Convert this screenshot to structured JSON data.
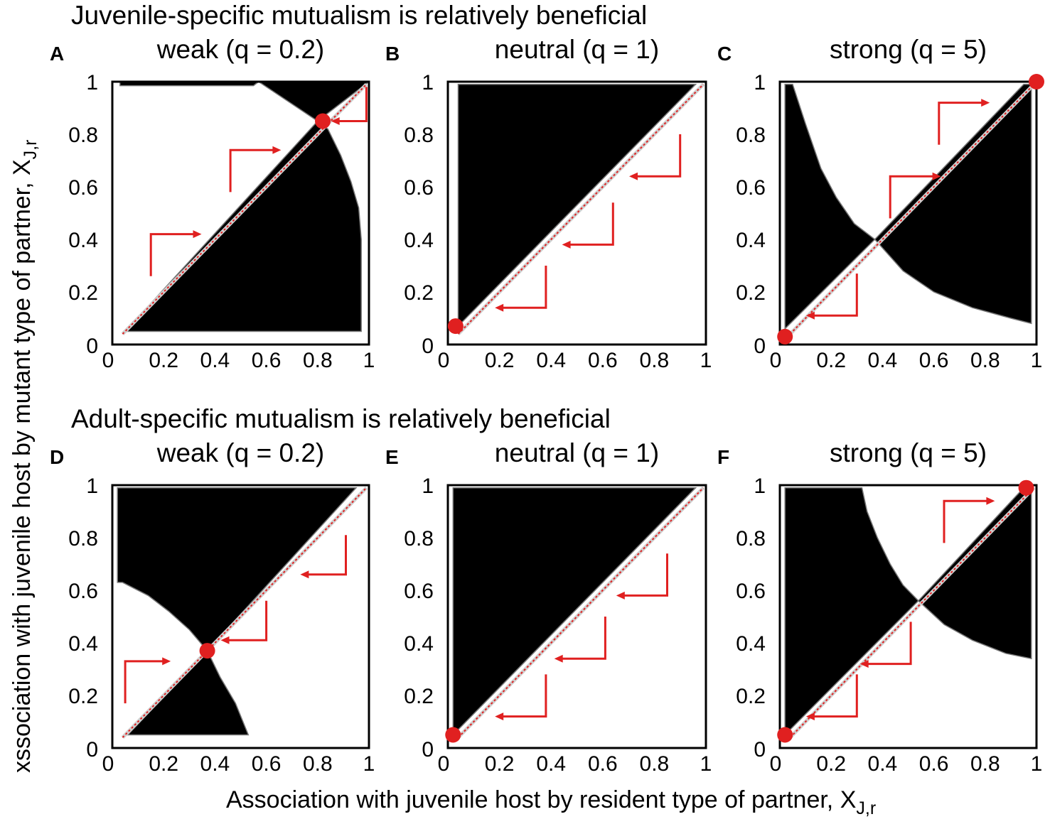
{
  "figure": {
    "row_titles": [
      "Juvenile-specific mutualism is relatively beneficial",
      "Adult-specific mutualism is relatively beneficial"
    ],
    "xlabel": "Association with juvenile host by resident type of partner, X",
    "xlabel_sub": "J,r",
    "ylabel": "xssociation with juvenile host by mutant type of partner, X",
    "ylabel_sub": "J,r",
    "colors": {
      "region": "#000000",
      "diagonal": "#e02020",
      "arrow": "#e02020",
      "point": "#e02020",
      "frame": "#000000"
    }
  },
  "chart_data": [
    {
      "type": "heatmap",
      "letter": "A",
      "title": "weak (q = 0.2)",
      "xlim": [
        0,
        1
      ],
      "ylim": [
        0,
        1
      ],
      "xticks": [
        "0",
        "0.2",
        "0.4",
        "0.6",
        "0.8",
        "1"
      ],
      "yticks": [
        "0",
        "0.2",
        "0.4",
        "0.6",
        "0.8",
        "1"
      ],
      "regions": [
        [
          [
            0.05,
            0.05
          ],
          [
            0.8,
            0.85
          ],
          [
            0.84,
            0.82
          ],
          [
            0.89,
            0.72
          ],
          [
            0.93,
            0.62
          ],
          [
            0.96,
            0.52
          ],
          [
            0.97,
            0.4
          ],
          [
            0.97,
            0.05
          ]
        ],
        [
          [
            0.8,
            0.85
          ],
          [
            0.57,
            1
          ],
          [
            1,
            1
          ]
        ],
        [
          [
            0.03,
            1
          ],
          [
            0.03,
            0.985
          ],
          [
            0.55,
            0.985
          ],
          [
            0.57,
            1
          ]
        ]
      ],
      "singular_points": [
        [
          0.82,
          0.85
        ]
      ],
      "arrows": [
        {
          "dir": "right",
          "from": [
            0.15,
            0.26
          ],
          "corner": [
            0.15,
            0.42
          ],
          "to": [
            0.32,
            0.42
          ]
        },
        {
          "dir": "right",
          "from": [
            0.46,
            0.58
          ],
          "corner": [
            0.46,
            0.74
          ],
          "to": [
            0.63,
            0.74
          ]
        },
        {
          "dir": "left",
          "from": [
            0.99,
            0.98
          ],
          "corner": [
            0.99,
            0.85
          ],
          "to": [
            0.88,
            0.85
          ]
        }
      ]
    },
    {
      "type": "heatmap",
      "letter": "B",
      "title": "neutral (q = 1)",
      "xlim": [
        0,
        1
      ],
      "ylim": [
        0,
        1
      ],
      "xticks": [
        "0",
        "0.2",
        "0.4",
        "0.6",
        "0.8",
        "1"
      ],
      "yticks": [
        "0",
        "0.2",
        "0.4",
        "0.6",
        "0.8",
        "1"
      ],
      "regions": [
        [
          [
            0.04,
            0.07
          ],
          [
            0.04,
            0.99
          ],
          [
            0.96,
            0.99
          ]
        ]
      ],
      "singular_points": [
        [
          0.03,
          0.07
        ]
      ],
      "arrows": [
        {
          "dir": "left",
          "from": [
            0.38,
            0.3
          ],
          "corner": [
            0.38,
            0.14
          ],
          "to": [
            0.21,
            0.14
          ]
        },
        {
          "dir": "left",
          "from": [
            0.64,
            0.54
          ],
          "corner": [
            0.64,
            0.38
          ],
          "to": [
            0.47,
            0.38
          ]
        },
        {
          "dir": "left",
          "from": [
            0.9,
            0.8
          ],
          "corner": [
            0.9,
            0.64
          ],
          "to": [
            0.73,
            0.64
          ]
        }
      ]
    },
    {
      "type": "heatmap",
      "letter": "C",
      "title": "strong (q = 5)",
      "xlim": [
        0,
        1
      ],
      "ylim": [
        0,
        1
      ],
      "xticks": [
        "0",
        "0.2",
        "0.4",
        "0.6",
        "0.8",
        "1"
      ],
      "yticks": [
        "0",
        "0.2",
        "0.4",
        "0.6",
        "0.8",
        "1"
      ],
      "regions": [
        [
          [
            0.02,
            0.06
          ],
          [
            0.02,
            0.99
          ],
          [
            0.05,
            0.99
          ],
          [
            0.1,
            0.84
          ],
          [
            0.16,
            0.67
          ],
          [
            0.22,
            0.56
          ],
          [
            0.29,
            0.46
          ],
          [
            0.37,
            0.4
          ]
        ],
        [
          [
            0.37,
            0.4
          ],
          [
            0.95,
            0.99
          ],
          [
            0.98,
            0.99
          ],
          [
            0.98,
            0.08
          ],
          [
            0.9,
            0.1
          ],
          [
            0.75,
            0.14
          ],
          [
            0.6,
            0.2
          ],
          [
            0.48,
            0.28
          ]
        ]
      ],
      "singular_points": [
        [
          0.02,
          0.03
        ],
        [
          1,
          1
        ]
      ],
      "arrows": [
        {
          "dir": "left",
          "from": [
            0.3,
            0.27
          ],
          "corner": [
            0.3,
            0.11
          ],
          "to": [
            0.13,
            0.11
          ]
        },
        {
          "dir": "right",
          "from": [
            0.43,
            0.48
          ],
          "corner": [
            0.43,
            0.64
          ],
          "to": [
            0.6,
            0.64
          ]
        },
        {
          "dir": "right",
          "from": [
            0.62,
            0.76
          ],
          "corner": [
            0.62,
            0.92
          ],
          "to": [
            0.79,
            0.92
          ]
        }
      ]
    },
    {
      "type": "heatmap",
      "letter": "D",
      "title": "weak (q = 0.2)",
      "xlim": [
        0,
        1
      ],
      "ylim": [
        0,
        1
      ],
      "xticks": [
        "0",
        "0.2",
        "0.4",
        "0.6",
        "0.8",
        "1"
      ],
      "yticks": [
        "0",
        "0.2",
        "0.4",
        "0.6",
        "0.8",
        "1"
      ],
      "regions": [
        [
          [
            0.02,
            0.99
          ],
          [
            0.95,
            0.99
          ],
          [
            0.37,
            0.37
          ],
          [
            0.3,
            0.45
          ],
          [
            0.22,
            0.52
          ],
          [
            0.14,
            0.58
          ],
          [
            0.04,
            0.63
          ],
          [
            0.02,
            0.63
          ]
        ],
        [
          [
            0.37,
            0.37
          ],
          [
            0.06,
            0.05
          ],
          [
            0.53,
            0.05
          ],
          [
            0.48,
            0.17
          ],
          [
            0.42,
            0.27
          ]
        ]
      ],
      "singular_points": [
        [
          0.37,
          0.37
        ]
      ],
      "arrows": [
        {
          "dir": "right",
          "from": [
            0.05,
            0.17
          ],
          "corner": [
            0.05,
            0.33
          ],
          "to": [
            0.2,
            0.33
          ]
        },
        {
          "dir": "left",
          "from": [
            0.6,
            0.56
          ],
          "corner": [
            0.6,
            0.41
          ],
          "to": [
            0.45,
            0.41
          ]
        },
        {
          "dir": "left",
          "from": [
            0.91,
            0.81
          ],
          "corner": [
            0.91,
            0.66
          ],
          "to": [
            0.76,
            0.66
          ]
        }
      ]
    },
    {
      "type": "heatmap",
      "letter": "E",
      "title": "neutral (q = 1)",
      "xlim": [
        0,
        1
      ],
      "ylim": [
        0,
        1
      ],
      "xticks": [
        "0",
        "0.2",
        "0.4",
        "0.6",
        "0.8",
        "1"
      ],
      "yticks": [
        "0",
        "0.2",
        "0.4",
        "0.6",
        "0.8",
        "1"
      ],
      "regions": [
        [
          [
            0.02,
            0.05
          ],
          [
            0.02,
            0.99
          ],
          [
            0.96,
            0.99
          ]
        ]
      ],
      "singular_points": [
        [
          0.02,
          0.05
        ]
      ],
      "arrows": [
        {
          "dir": "left",
          "from": [
            0.38,
            0.28
          ],
          "corner": [
            0.38,
            0.12
          ],
          "to": [
            0.21,
            0.12
          ]
        },
        {
          "dir": "left",
          "from": [
            0.61,
            0.5
          ],
          "corner": [
            0.61,
            0.34
          ],
          "to": [
            0.44,
            0.34
          ]
        },
        {
          "dir": "left",
          "from": [
            0.85,
            0.74
          ],
          "corner": [
            0.85,
            0.58
          ],
          "to": [
            0.68,
            0.58
          ]
        }
      ]
    },
    {
      "type": "heatmap",
      "letter": "F",
      "title": "strong (q = 5)",
      "xlim": [
        0,
        1
      ],
      "ylim": [
        0,
        1
      ],
      "xticks": [
        "0",
        "0.2",
        "0.4",
        "0.6",
        "0.8",
        "1"
      ],
      "yticks": [
        "0",
        "0.2",
        "0.4",
        "0.6",
        "0.8",
        "1"
      ],
      "regions": [
        [
          [
            0.02,
            0.05
          ],
          [
            0.02,
            0.99
          ],
          [
            0.32,
            0.99
          ],
          [
            0.34,
            0.9
          ],
          [
            0.38,
            0.8
          ],
          [
            0.43,
            0.7
          ],
          [
            0.48,
            0.62
          ],
          [
            0.54,
            0.56
          ]
        ],
        [
          [
            0.54,
            0.56
          ],
          [
            0.95,
            0.99
          ],
          [
            0.98,
            0.99
          ],
          [
            0.98,
            0.34
          ],
          [
            0.88,
            0.36
          ],
          [
            0.75,
            0.41
          ],
          [
            0.64,
            0.47
          ]
        ]
      ],
      "singular_points": [
        [
          0.02,
          0.05
        ],
        [
          0.96,
          0.99
        ]
      ],
      "arrows": [
        {
          "dir": "left",
          "from": [
            0.3,
            0.28
          ],
          "corner": [
            0.3,
            0.12
          ],
          "to": [
            0.13,
            0.12
          ]
        },
        {
          "dir": "left",
          "from": [
            0.51,
            0.48
          ],
          "corner": [
            0.51,
            0.32
          ],
          "to": [
            0.34,
            0.32
          ]
        },
        {
          "dir": "right",
          "from": [
            0.64,
            0.78
          ],
          "corner": [
            0.64,
            0.94
          ],
          "to": [
            0.81,
            0.94
          ]
        }
      ]
    }
  ]
}
